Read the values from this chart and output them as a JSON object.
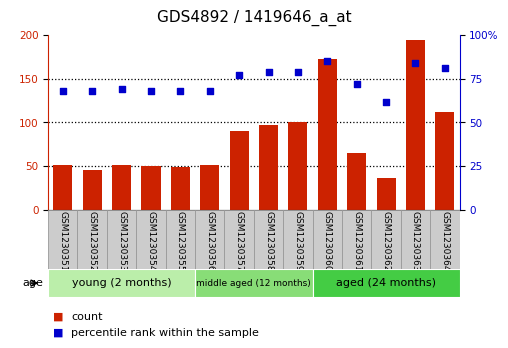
{
  "title": "GDS4892 / 1419646_a_at",
  "samples": [
    "GSM1230351",
    "GSM1230352",
    "GSM1230353",
    "GSM1230354",
    "GSM1230355",
    "GSM1230356",
    "GSM1230357",
    "GSM1230358",
    "GSM1230359",
    "GSM1230360",
    "GSM1230361",
    "GSM1230362",
    "GSM1230363",
    "GSM1230364"
  ],
  "counts": [
    51,
    46,
    51,
    50,
    49,
    51,
    90,
    97,
    100,
    173,
    65,
    36,
    195,
    112
  ],
  "percentiles": [
    68,
    68,
    69,
    68,
    68,
    68,
    77,
    79,
    79,
    85,
    72,
    62,
    84,
    81
  ],
  "groups": [
    {
      "label": "young (2 months)",
      "start": 0,
      "end": 5
    },
    {
      "label": "middle aged (12 months)",
      "start": 5,
      "end": 9
    },
    {
      "label": "aged (24 months)",
      "start": 9,
      "end": 14
    }
  ],
  "group_colors": [
    "#BBEEAA",
    "#88DD77",
    "#44CC44"
  ],
  "bar_color": "#CC2200",
  "dot_color": "#0000CC",
  "ylim_left": [
    0,
    200
  ],
  "ylim_right": [
    0,
    100
  ],
  "yticks_left": [
    0,
    50,
    100,
    150,
    200
  ],
  "yticks_right": [
    0,
    25,
    50,
    75,
    100
  ],
  "ytick_labels_right": [
    "0",
    "25",
    "50",
    "75",
    "100%"
  ],
  "background_color": "#ffffff",
  "plot_bg": "#ffffff",
  "age_label": "age",
  "legend_count": "count",
  "legend_percentile": "percentile rank within the sample",
  "title_fontsize": 11,
  "tick_fontsize": 7.5,
  "sample_fontsize": 6.5,
  "group_label_fontsize": 8
}
